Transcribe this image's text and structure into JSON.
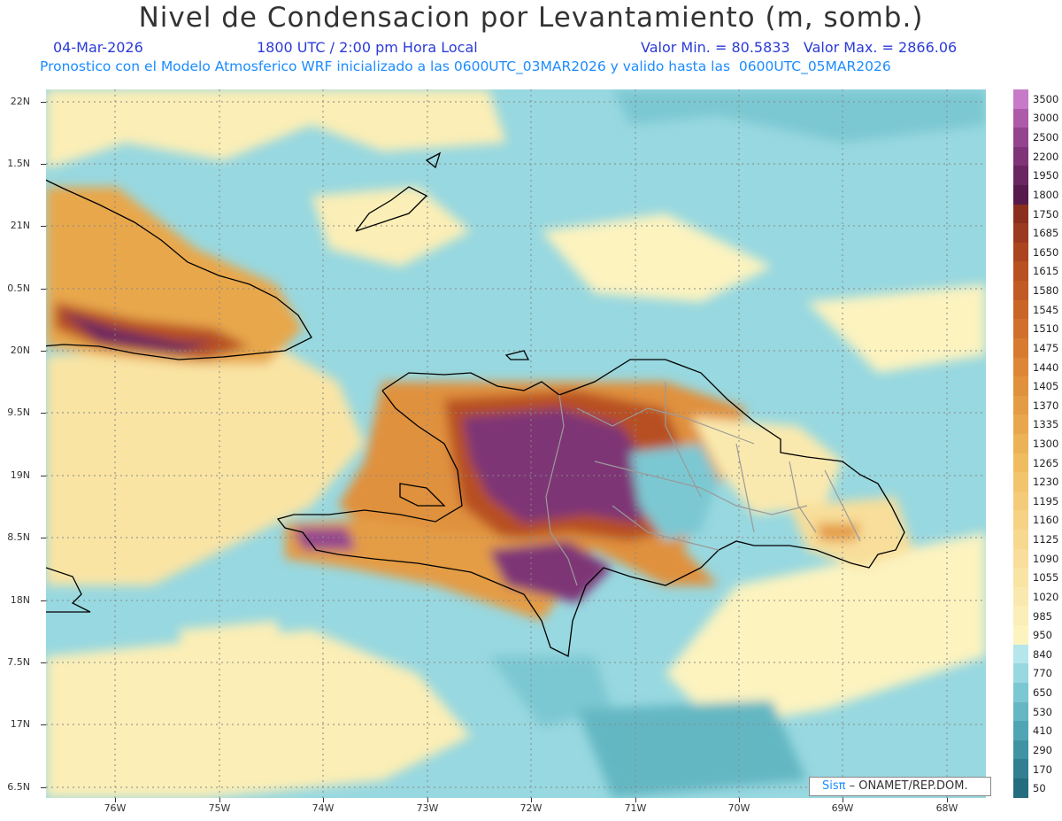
{
  "header": {
    "title": "Nivel de Condensacion por Levantamiento (m, somb.)",
    "date": "04-Mar-2026",
    "time": "1800 UTC / 2:00 pm Hora Local",
    "min_max": "Valor Min. = 80.5833   Valor Max. = 2866.06",
    "model_info": "Pronostico con el Modelo Atmosferico WRF inicializado a las 0600UTC_03MAR2026 y valido hasta las  0600UTC_05MAR2026"
  },
  "map": {
    "lat_labels": [
      "22N",
      "1.5N",
      "21N",
      "0.5N",
      "20N",
      "9.5N",
      "19N",
      "8.5N",
      "18N",
      "7.5N",
      "17N",
      "6.5N"
    ],
    "lon_labels": [
      "76W",
      "75W",
      "74W",
      "73W",
      "72W",
      "71W",
      "70W",
      "69W",
      "68W"
    ],
    "lat_range": [
      16.4,
      22.1
    ],
    "lon_range": [
      -76.65,
      -67.6
    ],
    "grid": true
  },
  "colorbar": {
    "levels": [
      "3500",
      "3000",
      "2500",
      "2200",
      "1950",
      "1800",
      "1750",
      "1685",
      "1650",
      "1615",
      "1580",
      "1545",
      "1510",
      "1475",
      "1440",
      "1405",
      "1370",
      "1335",
      "1300",
      "1265",
      "1230",
      "1195",
      "1160",
      "1125",
      "1090",
      "1055",
      "1020",
      "985",
      "950",
      "840",
      "770",
      "650",
      "530",
      "410",
      "290",
      "170",
      "50"
    ],
    "colors": [
      "#c77ac8",
      "#ad5aa8",
      "#94448e",
      "#7e3476",
      "#6a2660",
      "#561a4c",
      "#8a2f1e",
      "#9c3a1f",
      "#aa4520",
      "#b85022",
      "#c25a25",
      "#ca6528",
      "#d0702c",
      "#d67b30",
      "#dc8636",
      "#e0913c",
      "#e49c44",
      "#e8a74c",
      "#ecb256",
      "#f0bc60",
      "#f2c46c",
      "#f4cb78",
      "#f6d284",
      "#f7d88f",
      "#f8de9a",
      "#f9e4a4",
      "#fae9ae",
      "#fbeeb6",
      "#fcf3bf",
      "#b5e6ec",
      "#98d8e0",
      "#7cc8d2",
      "#64b7c3",
      "#4fa5b3",
      "#3f93a2",
      "#317f90",
      "#246d7e"
    ]
  },
  "credit": {
    "sis": "Sisπ",
    "org": "– ONAMET/REP.DOM."
  }
}
